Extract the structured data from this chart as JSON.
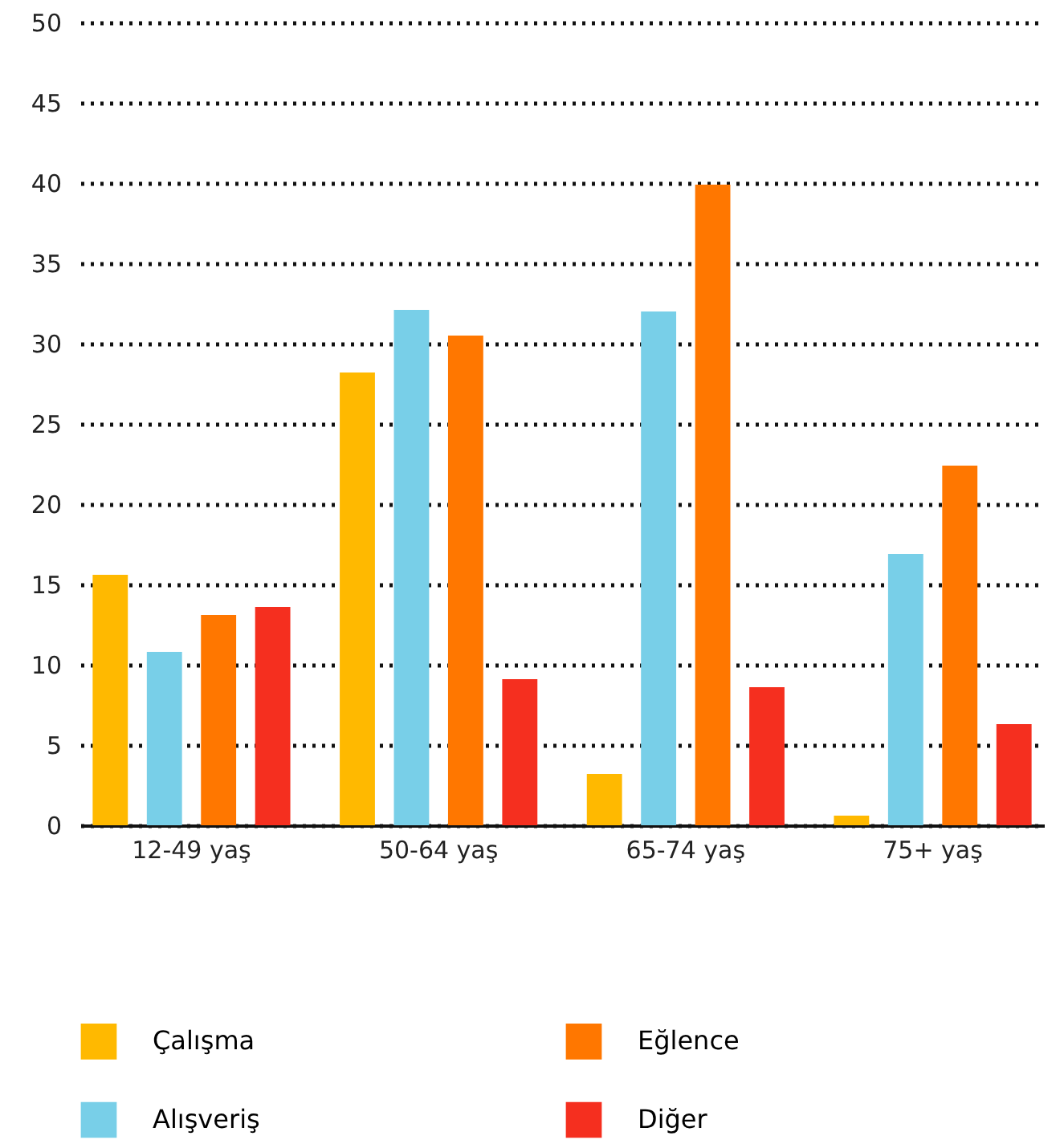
{
  "chart_data": {
    "type": "bar",
    "categories": [
      "12-49 yaş",
      "50-64 yaş",
      "65-74 yaş",
      "75+ yaş"
    ],
    "series": [
      {
        "name": "Çalışma",
        "color": "#ffb900",
        "values": [
          15.6,
          28.2,
          3.2,
          0.6
        ]
      },
      {
        "name": "Alışveriş",
        "color": "#78cfe8",
        "values": [
          10.8,
          32.1,
          32.0,
          16.9
        ]
      },
      {
        "name": "Eğlence",
        "color": "#ff7700",
        "values": [
          13.1,
          30.5,
          39.9,
          22.4
        ]
      },
      {
        "name": "Diğer",
        "color": "#f52f1f",
        "values": [
          13.6,
          9.1,
          8.6,
          6.3
        ]
      }
    ],
    "ylim": [
      0,
      50
    ],
    "yticks": [
      0,
      5,
      10,
      15,
      20,
      25,
      30,
      35,
      40,
      45,
      50
    ],
    "grid": "y",
    "legend": "bottom"
  }
}
